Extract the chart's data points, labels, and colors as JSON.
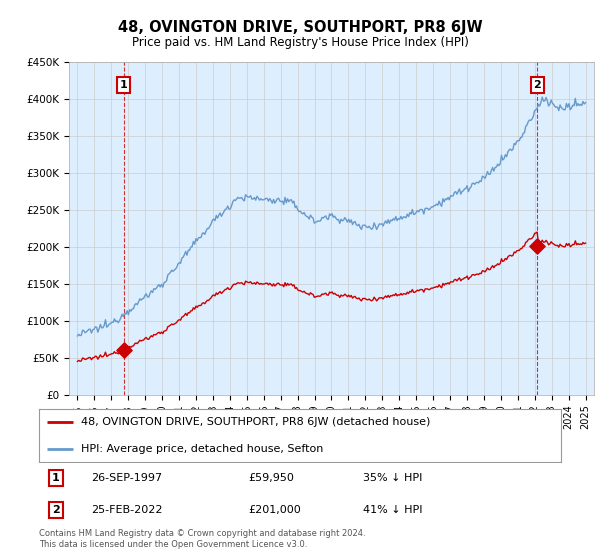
{
  "title": "48, OVINGTON DRIVE, SOUTHPORT, PR8 6JW",
  "subtitle": "Price paid vs. HM Land Registry's House Price Index (HPI)",
  "red_label": "48, OVINGTON DRIVE, SOUTHPORT, PR8 6JW (detached house)",
  "blue_label": "HPI: Average price, detached house, Sefton",
  "footnote": "Contains HM Land Registry data © Crown copyright and database right 2024.\nThis data is licensed under the Open Government Licence v3.0.",
  "point1_date": "26-SEP-1997",
  "point1_price": "£59,950",
  "point1_hpi": "35% ↓ HPI",
  "point2_date": "25-FEB-2022",
  "point2_price": "£201,000",
  "point2_hpi": "41% ↓ HPI",
  "ylim": [
    0,
    450000
  ],
  "yticks": [
    0,
    50000,
    100000,
    150000,
    200000,
    250000,
    300000,
    350000,
    400000,
    450000
  ],
  "ytick_labels": [
    "£0",
    "£50K",
    "£100K",
    "£150K",
    "£200K",
    "£250K",
    "£300K",
    "£350K",
    "£400K",
    "£450K"
  ],
  "red_color": "#cc0000",
  "blue_color": "#6699cc",
  "grid_color": "#cccccc",
  "plot_bg_color": "#ddeeff",
  "background_color": "#ffffff",
  "point1_x": 1997.73,
  "point1_y": 59950,
  "point2_x": 2022.15,
  "point2_y": 201000,
  "xlim_left": 1994.5,
  "xlim_right": 2025.5
}
